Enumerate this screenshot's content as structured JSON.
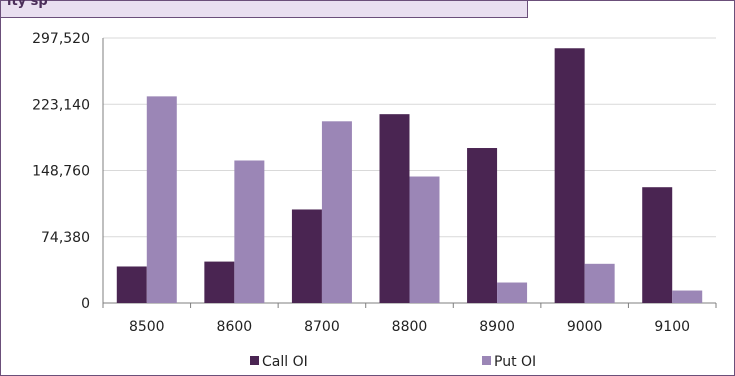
{
  "header": {
    "title_partial": "ity sp"
  },
  "colors": {
    "call": "#4a2552",
    "put": "#9b86b6",
    "grid": "#d9d9d9",
    "axis": "#7f7f7f",
    "frame": "#6b4f7a"
  },
  "chart_data": {
    "type": "bar",
    "title": "",
    "xlabel": "",
    "ylabel": "",
    "categories": [
      "8500",
      "8600",
      "8700",
      "8800",
      "8900",
      "9000",
      "9100"
    ],
    "series": [
      {
        "name": "Call OI",
        "values": [
          41000,
          46500,
          105000,
          212000,
          174000,
          286000,
          130000
        ]
      },
      {
        "name": "Put OI",
        "values": [
          232000,
          160000,
          204000,
          142000,
          23000,
          44000,
          14000
        ]
      }
    ],
    "ylim": [
      0,
      297520
    ],
    "yticks": [
      0,
      74380,
      148760,
      223140,
      297520
    ],
    "ytick_labels": [
      "0",
      "74,380",
      "148,760",
      "223,140",
      "297,520"
    ],
    "grid": true,
    "legend": "bottom"
  }
}
